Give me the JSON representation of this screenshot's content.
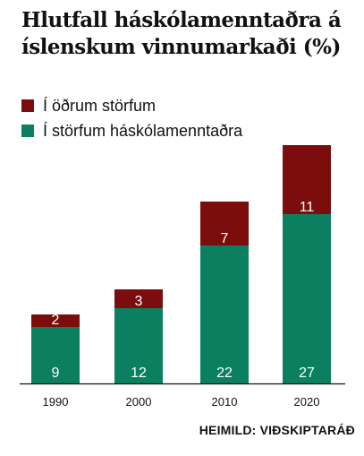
{
  "header": {
    "title_line1": "Hlutfall háskólamenntaðra á",
    "title_line2": "íslenskum vinnumarkaði (%)"
  },
  "legend": [
    {
      "label": "Í öðrum störfum",
      "color": "#7b0d0d"
    },
    {
      "label": "Í störfum háskólamenntaðra",
      "color": "#0b8060"
    }
  ],
  "source": "HEIMILD: VIÐSKIPTARÁÐ",
  "chart_data": {
    "type": "bar",
    "stacked": true,
    "categories": [
      "1990",
      "2000",
      "2010",
      "2020"
    ],
    "series": [
      {
        "name": "Í störfum háskólamenntaðra",
        "color": "#0b8060",
        "values": [
          9,
          12,
          22,
          27
        ]
      },
      {
        "name": "Í öðrum störfum",
        "color": "#7b0d0d",
        "values": [
          2,
          3,
          7,
          11
        ]
      }
    ],
    "title": "Hlutfall háskólamenntaðra á íslenskum vinnumarkaði (%)",
    "ylim": [
      0,
      40
    ],
    "grid": false,
    "legend_position": "top-left"
  }
}
